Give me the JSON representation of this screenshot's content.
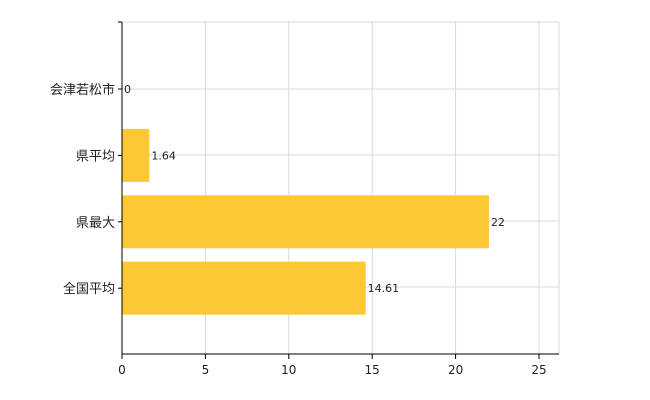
{
  "chart_data": {
    "type": "bar",
    "orientation": "horizontal",
    "categories": [
      "会津若松市",
      "県平均",
      "県最大",
      "全国平均"
    ],
    "values": [
      0,
      1.64,
      22,
      14.61
    ],
    "value_labels": [
      "0",
      "1.64",
      "22",
      "14.61"
    ],
    "xlim": [
      0,
      26.2
    ],
    "xticks": [
      "0",
      "5",
      "10",
      "15",
      "20",
      "25"
    ],
    "grid": true,
    "colors": {
      "bar": "#fdc835",
      "grid": "#d9d9d9",
      "axis": "#000000"
    }
  }
}
